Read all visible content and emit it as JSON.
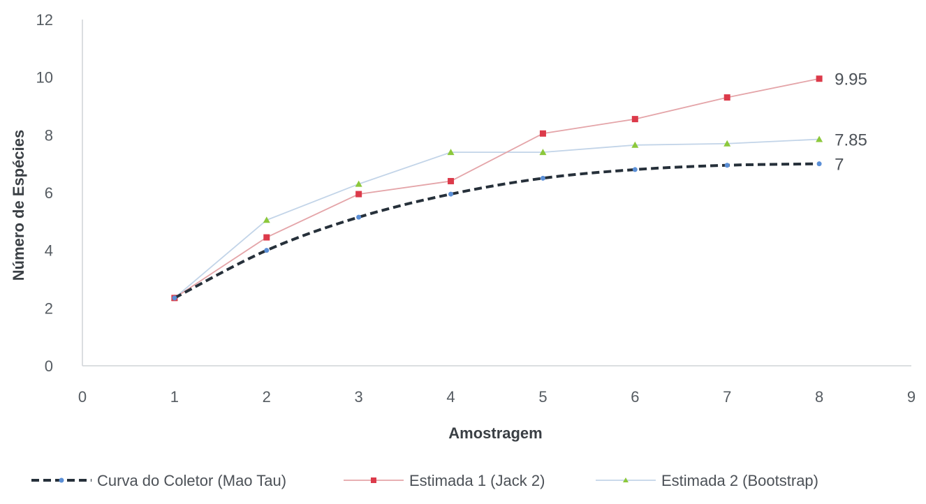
{
  "chart_data": {
    "type": "line",
    "title": "",
    "xlabel": "Amostragem",
    "ylabel": "Número de Espécies",
    "xlim": [
      0,
      9
    ],
    "ylim": [
      0,
      12
    ],
    "x_ticks": [
      "0",
      "1",
      "2",
      "3",
      "4",
      "5",
      "6",
      "7",
      "8",
      "9"
    ],
    "y_ticks": [
      "0",
      "2",
      "4",
      "6",
      "8",
      "10",
      "12"
    ],
    "grid": false,
    "legend_position": "bottom",
    "x": [
      1,
      2,
      3,
      4,
      5,
      6,
      7,
      8
    ],
    "series": [
      {
        "name": "Curva do Coletor (Mao Tau)",
        "values": [
          2.35,
          4.0,
          5.15,
          5.95,
          6.5,
          6.8,
          6.95,
          7.0
        ],
        "color": "#26303a",
        "marker_color": "#5b8fd6",
        "style": "dashed",
        "end_label": "7"
      },
      {
        "name": "Estimada 1 (Jack 2)",
        "values": [
          2.35,
          4.45,
          5.95,
          6.4,
          8.05,
          8.55,
          9.3,
          9.95
        ],
        "color": "#e4a4a8",
        "marker_color": "#dc3a4a",
        "style": "solid",
        "end_label": "9.95"
      },
      {
        "name": "Estimada 2 (Bootstrap)",
        "values": [
          2.35,
          5.05,
          6.3,
          7.4,
          7.4,
          7.65,
          7.7,
          7.85
        ],
        "color": "#c2d4e8",
        "marker_color": "#8cc83c",
        "style": "solid",
        "end_label": "7.85"
      }
    ]
  }
}
